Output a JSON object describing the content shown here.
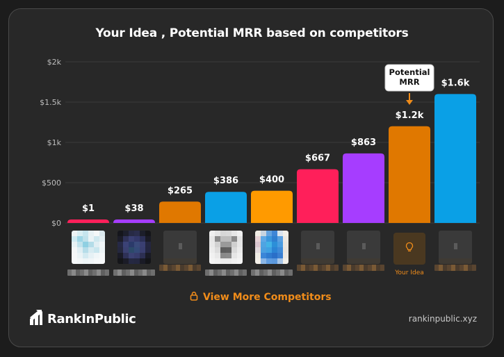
{
  "title": "Your Idea , Potential MRR based on competitors",
  "chart_data": {
    "type": "bar",
    "title": "Your Idea , Potential MRR based on competitors",
    "categories": [
      "",
      "",
      "",
      "",
      "",
      "",
      "",
      "Your Idea",
      ""
    ],
    "values": [
      1,
      38,
      265,
      386,
      400,
      667,
      863,
      1200,
      1600
    ],
    "value_labels": [
      "$1",
      "$38",
      "$265",
      "$386",
      "$400",
      "$667",
      "$863",
      "$1.2k",
      "$1.6k"
    ],
    "bar_colors": [
      "#ff1f5a",
      "#a63dff",
      "#e07800",
      "#0aa0e6",
      "#ff9a00",
      "#ff1f5a",
      "#a63dff",
      "#e07800",
      "#0aa0e6"
    ],
    "ylim": [
      0,
      2000
    ],
    "yticks": [
      0,
      500,
      1000,
      1500,
      2000
    ],
    "ytick_labels": [
      "$0",
      "$500",
      "$1k",
      "$1.5k",
      "$2k"
    ],
    "grid": true,
    "annotation": {
      "text": [
        "Potential",
        "MRR"
      ],
      "target_index": 7
    }
  },
  "competitors": [
    {
      "icon": "light-blue-pixel-icon"
    },
    {
      "icon": "dark-purple-pixel-icon"
    },
    {
      "icon": "placeholder-icon"
    },
    {
      "icon": "grey-face-pixel-icon"
    },
    {
      "icon": "blue-phone-pixel-icon"
    },
    {
      "icon": "placeholder-icon"
    },
    {
      "icon": "placeholder-icon"
    },
    {
      "icon": "bulb-icon",
      "label": "Your Idea"
    },
    {
      "icon": "placeholder-icon"
    }
  ],
  "view_more_label": "View More Competitors",
  "brand_name": "RankInPublic",
  "site_url": "rankinpublic.xyz",
  "colors": {
    "accent": "#f08c1a",
    "background": "#282828"
  }
}
